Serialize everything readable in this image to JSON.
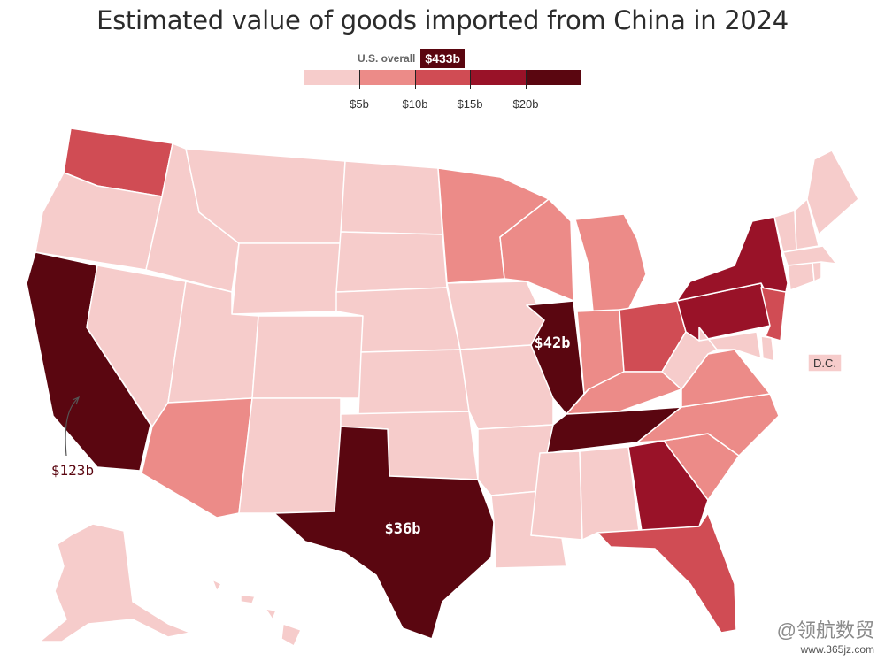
{
  "title": "Estimated value of goods imported from China in 2024",
  "overall": {
    "label": "U.S. overall",
    "value": "$433b"
  },
  "legend": {
    "colors": [
      "#f6cccb",
      "#ec8b88",
      "#d04c54",
      "#991228",
      "#5a0610"
    ],
    "ticks": [
      "$5b",
      "$10b",
      "$15b",
      "$20b"
    ]
  },
  "labels": {
    "illinois": "$42b",
    "texas": "$36b",
    "california": "$123b",
    "dc": "D.C."
  },
  "state_colors": {
    "WA": "#d04c54",
    "OR": "#f6cccb",
    "CA": "#5a0610",
    "NV": "#f6cccb",
    "ID": "#f6cccb",
    "MT": "#f6cccb",
    "WY": "#f6cccb",
    "UT": "#f6cccb",
    "AZ": "#ec8b88",
    "CO": "#f6cccb",
    "NM": "#f6cccb",
    "ND": "#f6cccb",
    "SD": "#f6cccb",
    "NE": "#f6cccb",
    "KS": "#f6cccb",
    "OK": "#f6cccb",
    "TX": "#5a0610",
    "MN": "#ec8b88",
    "IA": "#f6cccb",
    "MO": "#f6cccb",
    "AR": "#f6cccb",
    "LA": "#f6cccb",
    "WI": "#ec8b88",
    "IL": "#5a0610",
    "MI": "#ec8b88",
    "IN": "#ec8b88",
    "OH": "#d04c54",
    "KY": "#ec8b88",
    "TN": "#5a0610",
    "MS": "#f6cccb",
    "AL": "#f6cccb",
    "GA": "#991228",
    "FL": "#d04c54",
    "SC": "#ec8b88",
    "NC": "#ec8b88",
    "VA": "#ec8b88",
    "WV": "#f6cccb",
    "PA": "#991228",
    "NY": "#991228",
    "NJ": "#d04c54",
    "MD": "#f6cccb",
    "DE": "#f6cccb",
    "DC": "#f6cccb",
    "CT": "#f6cccb",
    "RI": "#f6cccb",
    "MA": "#f6cccb",
    "VT": "#f6cccb",
    "NH": "#f6cccb",
    "ME": "#f6cccb",
    "AK": "#f6cccb",
    "HI": "#f6cccb"
  },
  "watermark": {
    "line1": "@领航数贸",
    "line2": "www.365jz.com"
  }
}
